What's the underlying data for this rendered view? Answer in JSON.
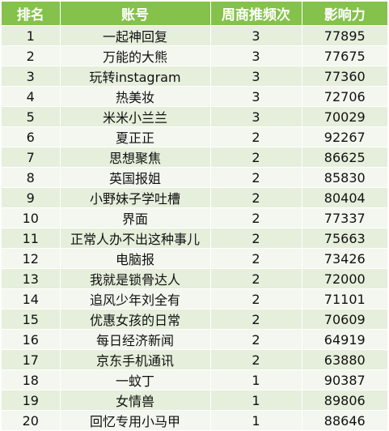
{
  "table": {
    "headers": {
      "rank": "排名",
      "account": "账号",
      "frequency": "周商推频次",
      "influence": "影响力"
    },
    "rows": [
      {
        "rank": "1",
        "account": "一起神回复",
        "frequency": "3",
        "influence": "77895"
      },
      {
        "rank": "2",
        "account": "万能的大熊",
        "frequency": "3",
        "influence": "77675"
      },
      {
        "rank": "3",
        "account": "玩转instagram",
        "frequency": "3",
        "influence": "77360"
      },
      {
        "rank": "4",
        "account": "热美妆",
        "frequency": "3",
        "influence": "72706"
      },
      {
        "rank": "5",
        "account": "米米小兰兰",
        "frequency": "3",
        "influence": "70029"
      },
      {
        "rank": "6",
        "account": "夏正正",
        "frequency": "2",
        "influence": "92267"
      },
      {
        "rank": "7",
        "account": "思想聚焦",
        "frequency": "2",
        "influence": "86625"
      },
      {
        "rank": "8",
        "account": "英国报姐",
        "frequency": "2",
        "influence": "85830"
      },
      {
        "rank": "9",
        "account": "小野妹子学吐槽",
        "frequency": "2",
        "influence": "80404"
      },
      {
        "rank": "10",
        "account": "界面",
        "frequency": "2",
        "influence": "77337"
      },
      {
        "rank": "11",
        "account": "正常人办不出这种事儿",
        "frequency": "2",
        "influence": "75663"
      },
      {
        "rank": "12",
        "account": "电脑报",
        "frequency": "2",
        "influence": "73426"
      },
      {
        "rank": "13",
        "account": "我就是锁骨达人",
        "frequency": "2",
        "influence": "72000"
      },
      {
        "rank": "14",
        "account": "追风少年刘全有",
        "frequency": "2",
        "influence": "71101"
      },
      {
        "rank": "15",
        "account": "优惠女孩的日常",
        "frequency": "2",
        "influence": "70609"
      },
      {
        "rank": "16",
        "account": "每日经济新闻",
        "frequency": "2",
        "influence": "64919"
      },
      {
        "rank": "17",
        "account": "京东手机通讯",
        "frequency": "2",
        "influence": "63880"
      },
      {
        "rank": "18",
        "account": "一蚊丁",
        "frequency": "1",
        "influence": "90387"
      },
      {
        "rank": "19",
        "account": "女情兽",
        "frequency": "1",
        "influence": "89806"
      },
      {
        "rank": "20",
        "account": "回忆专用小马甲",
        "frequency": "1",
        "influence": "88646"
      }
    ]
  },
  "colors": {
    "header_bg": "#84c24b",
    "row_odd_bg": "#e5efdb",
    "row_even_bg": "#f3f7ef"
  }
}
